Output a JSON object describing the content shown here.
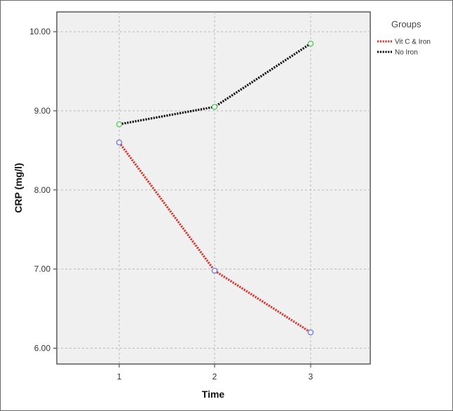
{
  "chart_data": {
    "type": "line",
    "xlabel": "Time",
    "ylabel": "CRP (mg/l)",
    "categories": [
      "1",
      "2",
      "3"
    ],
    "y_ticks": [
      "6.00",
      "7.00",
      "8.00",
      "9.00",
      "10.00"
    ],
    "ylim": [
      5.8,
      10.25
    ],
    "grid": true,
    "legend_placement": "top-right, outside plot",
    "legend_title": "Groups",
    "series": [
      {
        "name": "Vit C & Iron",
        "values": [
          8.6,
          6.98,
          6.2
        ],
        "line_color": "#d9342b",
        "marker_color": "#7d7fd6"
      },
      {
        "name": "No Iron",
        "values": [
          8.83,
          9.05,
          9.85
        ],
        "line_color": "#111111",
        "marker_color": "#5fc85f"
      }
    ]
  }
}
